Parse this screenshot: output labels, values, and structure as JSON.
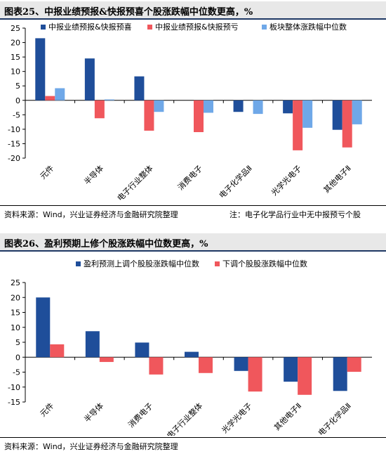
{
  "fig25": {
    "title": "图表25、中报业绩预报&快报预喜个股涨跌幅中位数更高，%",
    "source": "资料来源：Wind，兴业证券经济与金融研究院整理",
    "note": "注：电子化学品行业中无中报预亏个股"
  },
  "fig26": {
    "title": "图表26、盈利预期上修个股涨跌幅中位数更高，%",
    "source": "资料来源：Wind，兴业证券经济与金融研究院整理"
  },
  "colors": {
    "blue_dark": "#1f4e9a",
    "red": "#f0575c",
    "blue_light": "#6fa8e8"
  },
  "chart_data": [
    {
      "type": "bar",
      "categories": [
        "元件",
        "半导体",
        "电子行业整体",
        "消费电子",
        "电子化学品Ⅱ",
        "光学光电子",
        "其他电子Ⅱ"
      ],
      "series": [
        {
          "name": "中报业绩预报&快报预喜",
          "values": [
            21.5,
            14.5,
            8.3,
            null,
            -4.0,
            -4.5,
            -10.2
          ]
        },
        {
          "name": "中报业绩预报&快报预亏",
          "values": [
            1.5,
            -6.2,
            -10.5,
            -11.0,
            null,
            -17.3,
            -16.3
          ]
        },
        {
          "name": "板块整体涨跌幅中位数",
          "values": [
            4.2,
            0.3,
            -4.0,
            -4.3,
            -4.7,
            -9.5,
            -8.3
          ]
        }
      ],
      "ylim": [
        -20,
        25
      ],
      "yticks": [
        25,
        20,
        15,
        10,
        5,
        0,
        -5,
        -10,
        -15,
        -20
      ],
      "legend": "top",
      "grid": false
    },
    {
      "type": "bar",
      "categories": [
        "元件",
        "半导体",
        "消费电子",
        "电子行业整体",
        "光学光电子",
        "其他电子Ⅱ",
        "电子化学品Ⅱ"
      ],
      "series": [
        {
          "name": "盈利预测上调个股股涨跌幅中位数",
          "values": [
            20.0,
            8.7,
            4.9,
            1.8,
            -4.6,
            -8.2,
            -11.3
          ]
        },
        {
          "name": "下调个股股涨跌幅中位数",
          "values": [
            4.3,
            -1.6,
            -5.8,
            -5.3,
            -11.5,
            -12.6,
            -4.9
          ]
        }
      ],
      "ylim": [
        -15,
        25
      ],
      "yticks": [
        25,
        20,
        15,
        10,
        5,
        0,
        -5,
        -10,
        -15
      ],
      "legend": "top",
      "grid": false
    }
  ]
}
